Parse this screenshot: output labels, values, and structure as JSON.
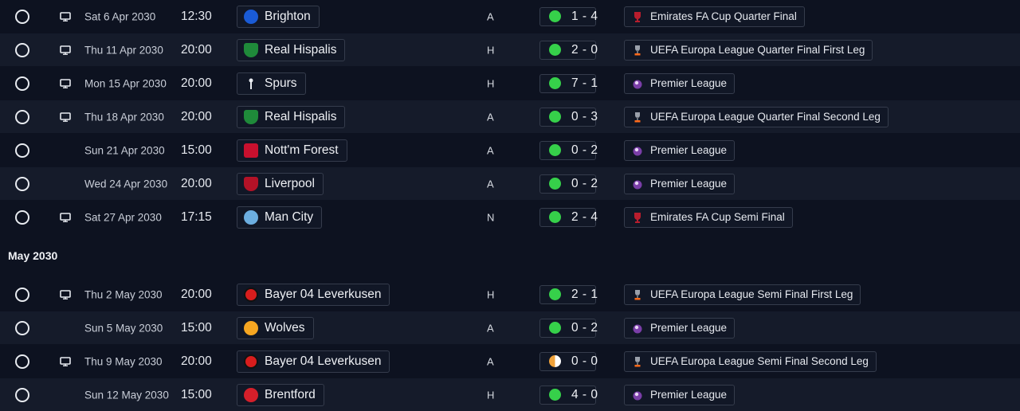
{
  "month_header": "May 2030",
  "colors": {
    "win": "#36d04a",
    "draw": "#f0a23a",
    "row_alt": "#151b2a",
    "row_base": "#0d1220"
  },
  "fixtures": [
    {
      "date": "Sat 6 Apr 2030",
      "time": "12:30",
      "tv": true,
      "team": "Brighton",
      "crest": "brighton-crest-icon",
      "venue": "A",
      "result": "win",
      "score": "1 - 4",
      "competition": "Emirates FA Cup Quarter Final",
      "comp_icon": "fa-cup-icon"
    },
    {
      "date": "Thu 11 Apr 2030",
      "time": "20:00",
      "tv": true,
      "team": "Real Hispalis",
      "crest": "real-hispalis-crest-icon",
      "venue": "H",
      "result": "win",
      "score": "2 - 0",
      "competition": "UEFA Europa League Quarter Final First Leg",
      "comp_icon": "europa-league-icon"
    },
    {
      "date": "Mon 15 Apr 2030",
      "time": "20:00",
      "tv": true,
      "team": "Spurs",
      "crest": "spurs-crest-icon",
      "venue": "H",
      "result": "win",
      "score": "7 - 1",
      "competition": "Premier League",
      "comp_icon": "premier-league-icon"
    },
    {
      "date": "Thu 18 Apr 2030",
      "time": "20:00",
      "tv": true,
      "team": "Real Hispalis",
      "crest": "real-hispalis-crest-icon",
      "venue": "A",
      "result": "win",
      "score": "0 - 3",
      "competition": "UEFA Europa League Quarter Final Second Leg",
      "comp_icon": "europa-league-icon"
    },
    {
      "date": "Sun 21 Apr 2030",
      "time": "15:00",
      "tv": false,
      "team": "Nott'm Forest",
      "crest": "nottm-forest-crest-icon",
      "venue": "A",
      "result": "win",
      "score": "0 - 2",
      "competition": "Premier League",
      "comp_icon": "premier-league-icon"
    },
    {
      "date": "Wed 24 Apr 2030",
      "time": "20:00",
      "tv": false,
      "team": "Liverpool",
      "crest": "liverpool-crest-icon",
      "venue": "A",
      "result": "win",
      "score": "0 - 2",
      "competition": "Premier League",
      "comp_icon": "premier-league-icon"
    },
    {
      "date": "Sat 27 Apr 2030",
      "time": "17:15",
      "tv": true,
      "team": "Man City",
      "crest": "man-city-crest-icon",
      "venue": "N",
      "result": "win",
      "score": "2 - 4",
      "competition": "Emirates FA Cup Semi Final",
      "comp_icon": "fa-cup-icon"
    },
    {
      "date": "Thu 2 May 2030",
      "time": "20:00",
      "tv": true,
      "team": "Bayer 04 Leverkusen",
      "crest": "leverkusen-crest-icon",
      "venue": "H",
      "result": "win",
      "score": "2 - 1",
      "competition": "UEFA Europa League Semi Final First Leg",
      "comp_icon": "europa-league-icon"
    },
    {
      "date": "Sun 5 May 2030",
      "time": "15:00",
      "tv": false,
      "team": "Wolves",
      "crest": "wolves-crest-icon",
      "venue": "A",
      "result": "win",
      "score": "0 - 2",
      "competition": "Premier League",
      "comp_icon": "premier-league-icon"
    },
    {
      "date": "Thu 9 May 2030",
      "time": "20:00",
      "tv": true,
      "team": "Bayer 04 Leverkusen",
      "crest": "leverkusen-crest-icon",
      "venue": "A",
      "result": "draw",
      "score": "0 - 0",
      "competition": "UEFA Europa League Semi Final Second Leg",
      "comp_icon": "europa-league-icon"
    },
    {
      "date": "Sun 12 May 2030",
      "time": "15:00",
      "tv": false,
      "team": "Brentford",
      "crest": "brentford-crest-icon",
      "venue": "H",
      "result": "win",
      "score": "4 - 0",
      "competition": "Premier League",
      "comp_icon": "premier-league-icon"
    }
  ]
}
